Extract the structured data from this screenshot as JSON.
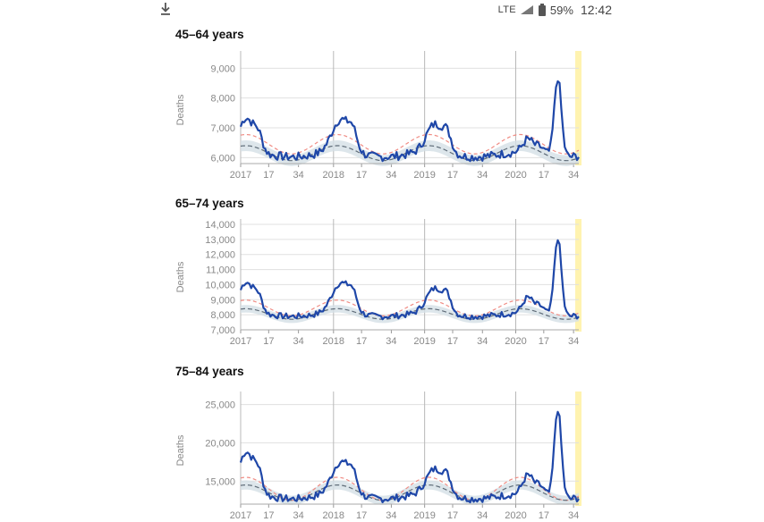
{
  "status_bar": {
    "network": "LTE",
    "battery": "59%",
    "time": "12:42"
  },
  "colors": {
    "actual_line": "#1f47a8",
    "expected_line": "#f08c84",
    "baseline_line": "#5f6c78",
    "band_fill": "#d5e0e6",
    "highlight": "#fff3b0",
    "grid": "#e0e0e0",
    "year_line": "#b8b8b8"
  },
  "chart_data": [
    {
      "type": "line",
      "title": "45–64 years",
      "ylabel": "Deaths",
      "ylim": [
        5800,
        9400
      ],
      "yticks": [
        6000,
        7000,
        8000,
        9000
      ],
      "ytick_labels": [
        "6,000",
        "7,000",
        "8,000",
        "9,000"
      ],
      "x_ticks": [
        "2017",
        "17",
        "34",
        "2018",
        "17",
        "34",
        "2019",
        "17",
        "34",
        "2020",
        "17",
        "34"
      ],
      "weekly_deaths": {
        "base": 6100,
        "expected": 6450,
        "expected_amp": 650,
        "baseline": 6150,
        "baseline_amp": 500,
        "band_half": 180,
        "peaks": [
          [
            3,
            1150,
            4
          ],
          [
            57,
            1100,
            5
          ],
          [
            111,
            950,
            5
          ],
          [
            164,
            450,
            3
          ]
        ],
        "spike": [
          181,
          2650,
          2
        ]
      }
    },
    {
      "type": "line",
      "title": "65–74 years",
      "ylabel": "Deaths",
      "ylim": [
        7000,
        14000
      ],
      "yticks": [
        7000,
        8000,
        9000,
        10000,
        11000,
        12000,
        13000,
        14000
      ],
      "ytick_labels": [
        "7,000",
        "8,000",
        "9,000",
        "10,000",
        "11,000",
        "12,000",
        "13,000",
        "14,000"
      ],
      "x_ticks": [
        "2017",
        "17",
        "34",
        "2018",
        "17",
        "34",
        "2019",
        "17",
        "34",
        "2020",
        "17",
        "34"
      ],
      "weekly_deaths": {
        "base": 8000,
        "expected": 8450,
        "expected_amp": 1050,
        "baseline": 8050,
        "baseline_amp": 700,
        "band_half": 250,
        "peaks": [
          [
            3,
            2050,
            4
          ],
          [
            57,
            2000,
            5
          ],
          [
            111,
            1650,
            5
          ],
          [
            164,
            1050,
            3
          ]
        ],
        "spike": [
          181,
          5200,
          2
        ]
      }
    },
    {
      "type": "line",
      "title": "75–84 years",
      "ylabel": "Deaths",
      "ylim": [
        12000,
        26000
      ],
      "yticks": [
        15000,
        20000,
        25000
      ],
      "ytick_labels": [
        "15,000",
        "20,000",
        "25,000"
      ],
      "x_ticks": [
        "2017",
        "17",
        "34",
        "2018",
        "17",
        "34",
        "2019",
        "17",
        "34",
        "2020",
        "17",
        "34"
      ],
      "weekly_deaths": {
        "base": 13000,
        "expected": 14000,
        "expected_amp": 3000,
        "baseline": 13500,
        "baseline_amp": 2000,
        "band_half": 600,
        "peaks": [
          [
            3,
            5500,
            4
          ],
          [
            57,
            4200,
            5
          ],
          [
            111,
            3300,
            5
          ],
          [
            164,
            2500,
            3
          ]
        ],
        "spike": [
          181,
          11700,
          2
        ]
      }
    }
  ]
}
